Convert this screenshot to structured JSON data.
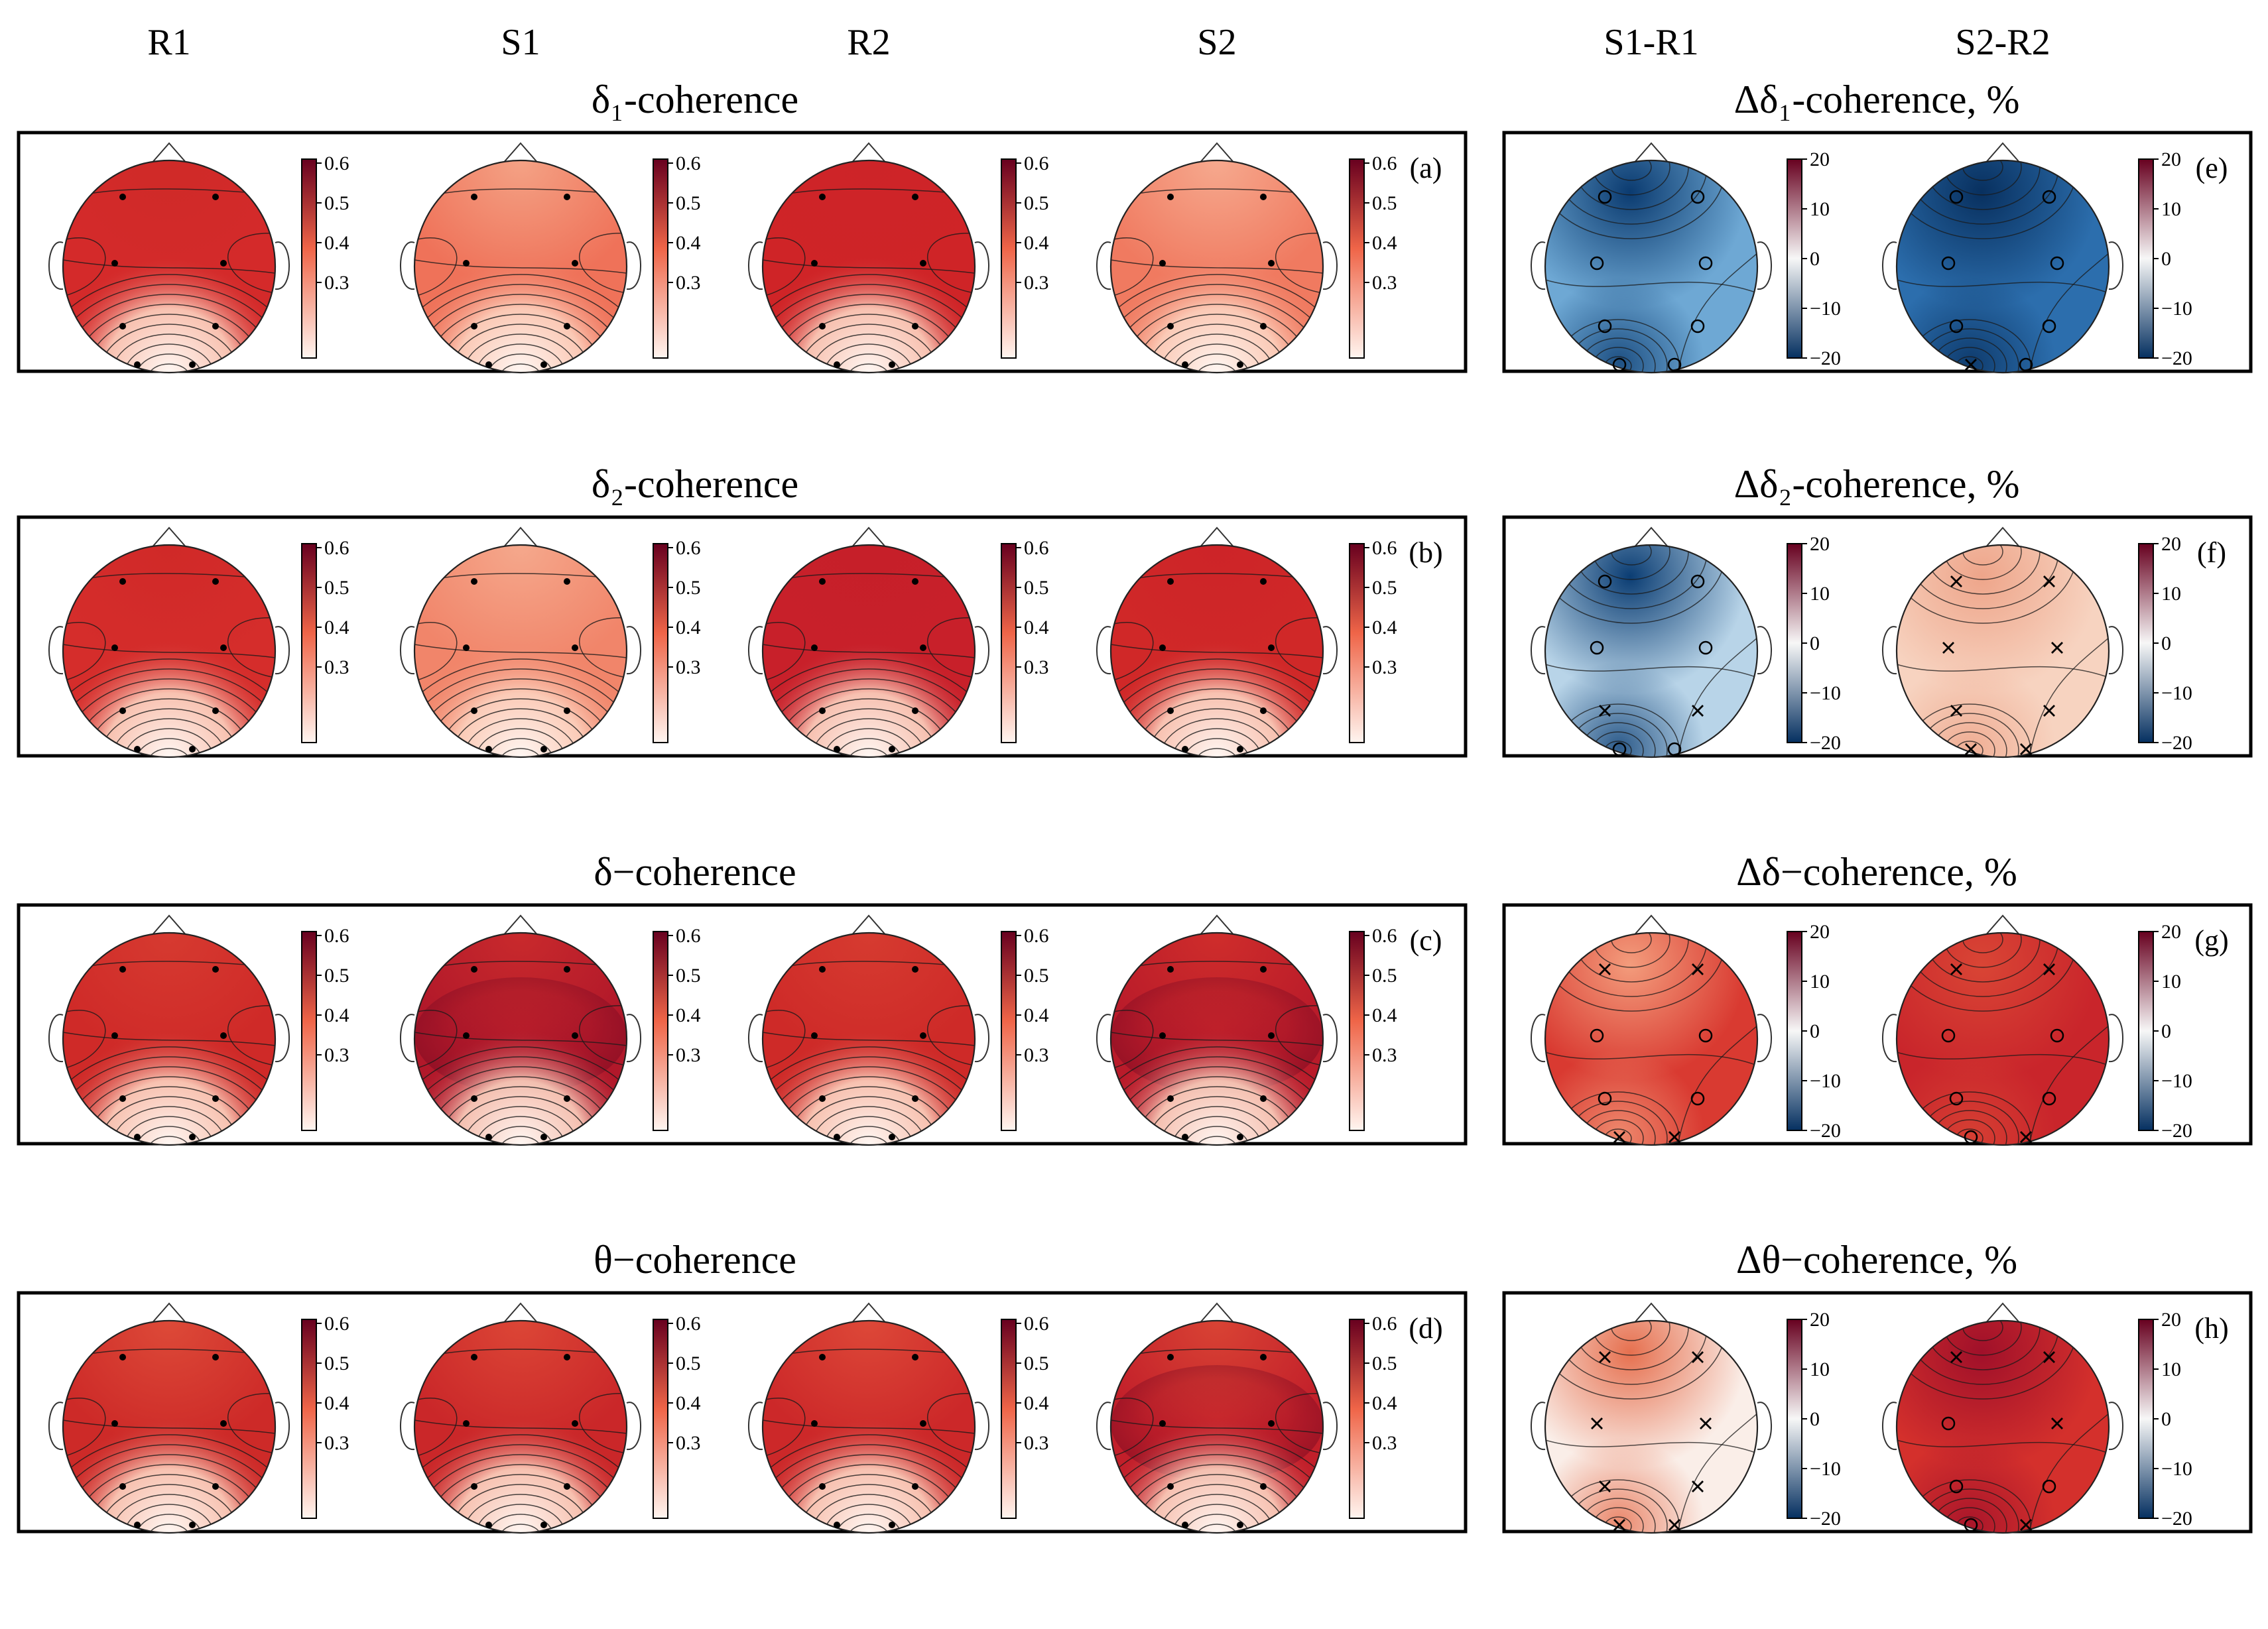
{
  "columns": {
    "left": [
      "R1",
      "S1",
      "R2",
      "S2"
    ],
    "right": [
      "S1-R1",
      "S2-R2"
    ]
  },
  "rows": [
    {
      "title_left": "δ₁-coherence",
      "title_right": "Δδ₁-coherence, %",
      "letter_left": "(a)",
      "letter_right": "(e)",
      "left_maps": [
        {
          "base": "#d42a2a",
          "front": "#cf2a28",
          "occipital": "light",
          "dark_lateral": false
        },
        {
          "base": "#ef7259",
          "front": "#f4a285",
          "occipital": "light",
          "dark_lateral": false
        },
        {
          "base": "#cf2427",
          "front": "#cd2428",
          "occipital": "light",
          "dark_lateral": false
        },
        {
          "base": "#f07a60",
          "front": "#f6a98e",
          "occipital": "light",
          "dark_lateral": false
        }
      ],
      "right_maps": [
        {
          "base": "#6ea8d4",
          "hot": "#0b3b70",
          "markers": [
            "o",
            "o",
            "o",
            "o",
            "o",
            "o",
            "o",
            "o"
          ]
        },
        {
          "base": "#2c6ead",
          "hot": "#08305f",
          "markers": [
            "o",
            "o",
            "o",
            "o",
            "o",
            "o",
            "x",
            "o"
          ]
        }
      ]
    },
    {
      "title_left": "δ₂-coherence",
      "title_right": "Δδ₂-coherence, %",
      "letter_left": "(b)",
      "letter_right": "(f)",
      "left_maps": [
        {
          "base": "#d52d2b",
          "front": "#d02928",
          "occipital": "light",
          "dark_lateral": false
        },
        {
          "base": "#f1856a",
          "front": "#f5a88c",
          "occipital": "light",
          "dark_lateral": false
        },
        {
          "base": "#c8202a",
          "front": "#c61f29",
          "occipital": "light",
          "dark_lateral": false
        },
        {
          "base": "#d02828",
          "front": "#cd2428",
          "occipital": "light",
          "dark_lateral": false
        }
      ],
      "right_maps": [
        {
          "base": "#b8d4e8",
          "hot": "#0b3d73",
          "markers": [
            "o",
            "o",
            "o",
            "o",
            "x",
            "x",
            "o",
            "o"
          ]
        },
        {
          "base": "#f7d3c0",
          "hot": "#eea58a",
          "markers": [
            "x",
            "x",
            "x",
            "x",
            "x",
            "x",
            "x",
            "x"
          ]
        }
      ]
    },
    {
      "title_left": "δ−coherence",
      "title_right": "Δδ−coherence, %",
      "letter_left": "(c)",
      "letter_right": "(g)",
      "left_maps": [
        {
          "base": "#cf2a28",
          "front": "#d63a30",
          "occipital": "light",
          "dark_lateral": false
        },
        {
          "base": "#b1182a",
          "front": "#c92a2c",
          "occipital": "light",
          "dark_lateral": true
        },
        {
          "base": "#ce2a28",
          "front": "#d63b30",
          "occipital": "light",
          "dark_lateral": false
        },
        {
          "base": "#b91b2a",
          "front": "#cf2d2b",
          "occipital": "light",
          "dark_lateral": true
        }
      ],
      "right_maps": [
        {
          "base": "#d93a31",
          "hot": "#f39c7c",
          "markers": [
            "x",
            "x",
            "o",
            "o",
            "o",
            "o",
            "x",
            "x"
          ]
        },
        {
          "base": "#c9252b",
          "hot": "#d94535",
          "markers": [
            "x",
            "x",
            "o",
            "o",
            "o",
            "o",
            "o",
            "x"
          ]
        }
      ]
    },
    {
      "title_left": "θ−coherence",
      "title_right": "Δθ−coherence, %",
      "letter_left": "(d)",
      "letter_right": "(h)",
      "left_maps": [
        {
          "base": "#cd2a28",
          "front": "#dd4a38",
          "occipital": "light",
          "dark_lateral": false
        },
        {
          "base": "#ca2729",
          "front": "#dc4636",
          "occipital": "light",
          "dark_lateral": false
        },
        {
          "base": "#cc2829",
          "front": "#dd4838",
          "occipital": "light",
          "dark_lateral": false
        },
        {
          "base": "#c21f2a",
          "front": "#d94334",
          "occipital": "light",
          "dark_lateral": true
        }
      ],
      "right_maps": [
        {
          "base": "#faeee8",
          "hot": "#e6704f",
          "markers": [
            "x",
            "x",
            "x",
            "x",
            "x",
            "x",
            "x",
            "x"
          ]
        },
        {
          "base": "#d4302c",
          "hot": "#a0102a",
          "markers": [
            "x",
            "x",
            "o",
            "x",
            "o",
            "o",
            "o",
            "x"
          ]
        }
      ]
    }
  ],
  "colorbar_left": {
    "ticks": [
      "0.6",
      "0.5",
      "0.4",
      "0.3"
    ],
    "top": "#67001f",
    "mid": "#ef6548",
    "bottom": "#fff5f0"
  },
  "colorbar_right": {
    "ticks": [
      "20",
      "10",
      "0",
      "−10",
      "−20"
    ],
    "top": "#67001f",
    "mid": "#f7f7f7",
    "bottom": "#053061"
  },
  "colors": {
    "frame": "#000000",
    "contour": "#1a1a1a",
    "electrode": "#000000"
  }
}
